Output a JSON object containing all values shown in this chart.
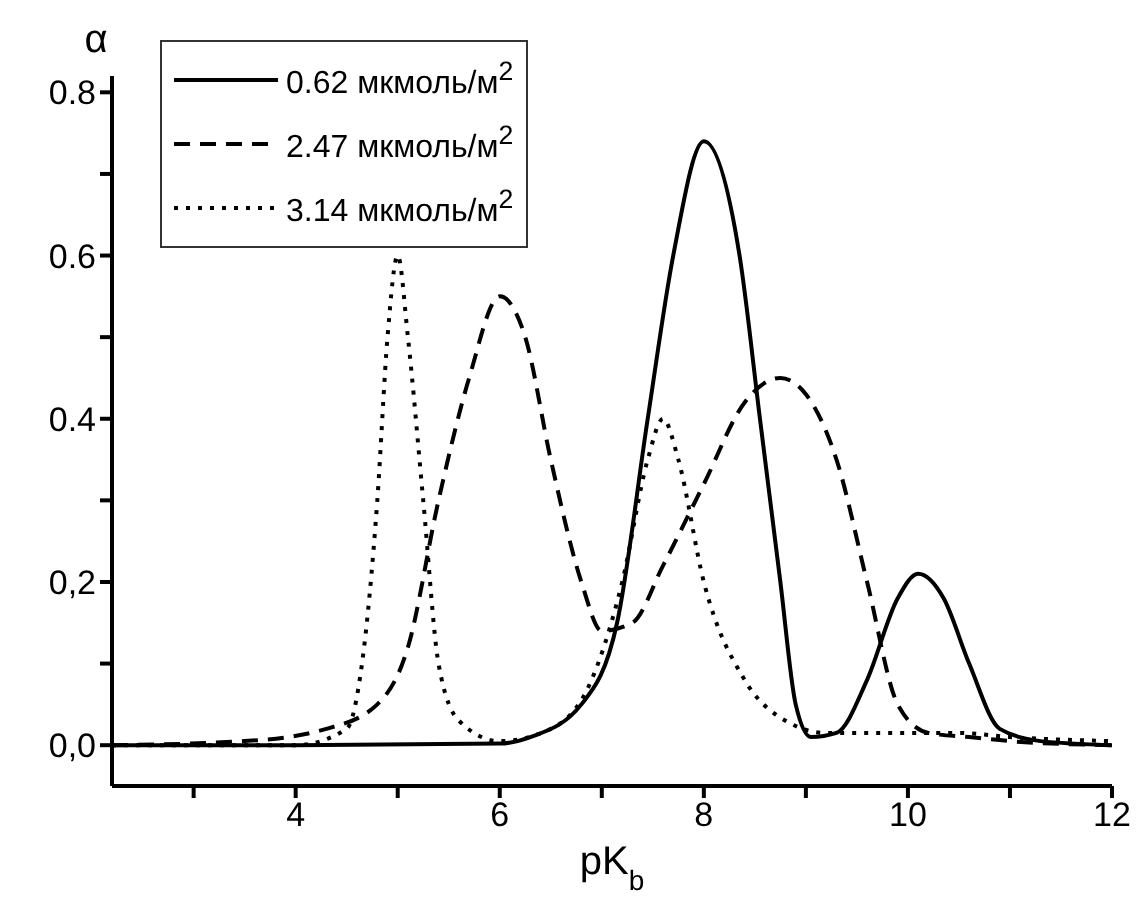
{
  "chart_data": {
    "type": "line",
    "xlabel": "pK$_{b}$",
    "ylabel": "α",
    "xlim": [
      2.2,
      12
    ],
    "xticks": [
      {
        "value": 3,
        "label": null
      },
      4,
      {
        "value": 5,
        "label": null
      },
      6,
      {
        "value": 7,
        "label": null
      },
      8,
      {
        "value": 9,
        "label": null
      },
      10,
      {
        "value": 11,
        "label": null
      },
      12
    ],
    "ylim": [
      -0.05,
      0.82
    ],
    "yticks": [
      {
        "value": 0,
        "label": "0,0"
      },
      {
        "value": 0.1,
        "label": null
      },
      {
        "value": 0.2,
        "label": "0,2"
      },
      {
        "value": 0.3,
        "label": null
      },
      0.4,
      {
        "value": 0.5,
        "label": null
      },
      0.6,
      {
        "value": 0.7,
        "label": null
      },
      0.8
    ],
    "legend": "top left",
    "marker": "none",
    "series": [
      {
        "name": "0.62 мкмоль/м$^{2}$",
        "color": "#000000",
        "line_style": "solid",
        "x": [
          2.2,
          4,
          6,
          6.3,
          6.8,
          7.15,
          7.45,
          7.7,
          8.0,
          8.35,
          8.55,
          8.75,
          8.9,
          9.05,
          9.3,
          9.6,
          9.9,
          10.1,
          10.35,
          10.6,
          10.9,
          11.3,
          12
        ],
        "values": [
          0,
          0,
          0.002,
          0.01,
          0.05,
          0.15,
          0.4,
          0.6,
          0.74,
          0.6,
          0.4,
          0.2,
          0.05,
          0.01,
          0.015,
          0.08,
          0.18,
          0.21,
          0.18,
          0.1,
          0.02,
          0.005,
          0
        ]
      },
      {
        "name": "2.47 мкмоль/м$^{2}$",
        "color": "#000000",
        "line_style": "dashed",
        "x": [
          2.2,
          3.5,
          4.3,
          4.8,
          5.1,
          5.4,
          5.7,
          6.0,
          6.25,
          6.5,
          6.8,
          7.0,
          7.3,
          7.6,
          8.0,
          8.4,
          8.75,
          9.0,
          9.3,
          9.6,
          9.9,
          10.2,
          10.6,
          11,
          12
        ],
        "values": [
          0,
          0.005,
          0.02,
          0.05,
          0.12,
          0.3,
          0.45,
          0.55,
          0.5,
          0.35,
          0.2,
          0.14,
          0.15,
          0.22,
          0.32,
          0.42,
          0.45,
          0.43,
          0.35,
          0.2,
          0.05,
          0.015,
          0.01,
          0.005,
          0
        ]
      },
      {
        "name": "3.14 мкмоль/м$^{2}$",
        "color": "#000000",
        "line_style": "dotted",
        "x": [
          2.2,
          4,
          4.5,
          4.65,
          4.8,
          4.9,
          5.0,
          5.1,
          5.25,
          5.4,
          5.6,
          6.0,
          6.5,
          6.9,
          7.2,
          7.45,
          7.6,
          7.75,
          8.0,
          8.4,
          8.8,
          9.2,
          10,
          10.5,
          11,
          12
        ],
        "values": [
          0,
          0,
          0.02,
          0.1,
          0.3,
          0.5,
          0.6,
          0.5,
          0.3,
          0.1,
          0.03,
          0.005,
          0.02,
          0.08,
          0.2,
          0.35,
          0.4,
          0.35,
          0.2,
          0.08,
          0.03,
          0.015,
          0.015,
          0.015,
          0.01,
          0.005
        ]
      }
    ]
  }
}
